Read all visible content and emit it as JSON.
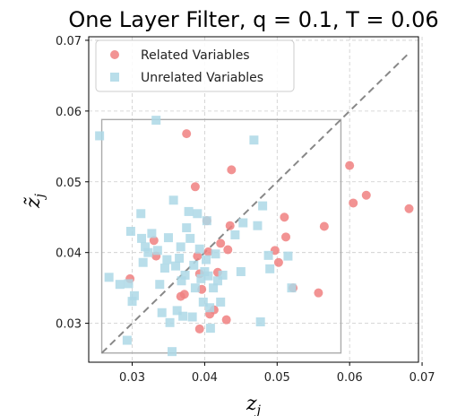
{
  "chart_data": {
    "type": "scatter",
    "title": "One Layer Filter, q = 0.1, T = 0.06",
    "xlabel": "z",
    "xlabel_sub": "j",
    "ylabel": "z̃",
    "ylabel_sub": "j",
    "xlim": [
      0.024,
      0.0695
    ],
    "ylim": [
      0.0245,
      0.0705
    ],
    "xticks": [
      "0.03",
      "0.04",
      "0.05",
      "0.06",
      "0.07"
    ],
    "yticks": [
      "0.03",
      "0.04",
      "0.05",
      "0.06",
      "0.07"
    ],
    "grid": true,
    "legend_position": "top-left",
    "diagonal": [
      [
        0.0258,
        0.0258
      ],
      [
        0.068,
        0.068
      ]
    ],
    "threshold_box": {
      "x0": 0.0258,
      "x1": 0.0588,
      "y0": 0.0258,
      "y1": 0.0588
    },
    "series": [
      {
        "name": "Related Variables",
        "marker": "circle",
        "color": "#f08080",
        "points": [
          [
            0.0297,
            0.0363
          ],
          [
            0.033,
            0.0417
          ],
          [
            0.0333,
            0.0395
          ],
          [
            0.0367,
            0.0338
          ],
          [
            0.0372,
            0.0341
          ],
          [
            0.0375,
            0.0568
          ],
          [
            0.0387,
            0.0493
          ],
          [
            0.039,
            0.0395
          ],
          [
            0.0393,
            0.037
          ],
          [
            0.0396,
            0.0348
          ],
          [
            0.0393,
            0.0292
          ],
          [
            0.0403,
            0.0445
          ],
          [
            0.0405,
            0.0401
          ],
          [
            0.0407,
            0.0313
          ],
          [
            0.0413,
            0.0319
          ],
          [
            0.0418,
            0.0372
          ],
          [
            0.0422,
            0.0413
          ],
          [
            0.043,
            0.0305
          ],
          [
            0.0432,
            0.0404
          ],
          [
            0.0435,
            0.0438
          ],
          [
            0.0437,
            0.0517
          ],
          [
            0.0497,
            0.0403
          ],
          [
            0.0502,
            0.0386
          ],
          [
            0.051,
            0.045
          ],
          [
            0.0512,
            0.0422
          ],
          [
            0.0522,
            0.035
          ],
          [
            0.0557,
            0.0343
          ],
          [
            0.0565,
            0.0437
          ],
          [
            0.06,
            0.0523
          ],
          [
            0.0605,
            0.047
          ],
          [
            0.0623,
            0.0481
          ],
          [
            0.0682,
            0.0462
          ]
        ]
      },
      {
        "name": "Unrelated Variables",
        "marker": "square",
        "color": "#add8e6",
        "points": [
          [
            0.0255,
            0.0565
          ],
          [
            0.0268,
            0.0365
          ],
          [
            0.0283,
            0.0355
          ],
          [
            0.0293,
            0.0276
          ],
          [
            0.0295,
            0.0356
          ],
          [
            0.0298,
            0.043
          ],
          [
            0.03,
            0.0331
          ],
          [
            0.0303,
            0.0339
          ],
          [
            0.0312,
            0.0455
          ],
          [
            0.0313,
            0.042
          ],
          [
            0.0315,
            0.0386
          ],
          [
            0.0318,
            0.0408
          ],
          [
            0.0322,
            0.04
          ],
          [
            0.0327,
            0.0427
          ],
          [
            0.0333,
            0.0587
          ],
          [
            0.0335,
            0.0403
          ],
          [
            0.0338,
            0.0355
          ],
          [
            0.0341,
            0.0315
          ],
          [
            0.0345,
            0.0378
          ],
          [
            0.0348,
            0.039
          ],
          [
            0.035,
            0.0421
          ],
          [
            0.0352,
            0.0301
          ],
          [
            0.0355,
            0.026
          ],
          [
            0.0357,
            0.0474
          ],
          [
            0.036,
            0.0381
          ],
          [
            0.0362,
            0.0318
          ],
          [
            0.0365,
            0.0392
          ],
          [
            0.0367,
            0.0408
          ],
          [
            0.0368,
            0.036
          ],
          [
            0.037,
            0.031
          ],
          [
            0.0373,
            0.0368
          ],
          [
            0.0375,
            0.0435
          ],
          [
            0.0378,
            0.0458
          ],
          [
            0.038,
            0.042
          ],
          [
            0.0383,
            0.0309
          ],
          [
            0.0385,
            0.0382
          ],
          [
            0.0387,
            0.035
          ],
          [
            0.039,
            0.0455
          ],
          [
            0.0393,
            0.0405
          ],
          [
            0.0395,
            0.0363
          ],
          [
            0.0398,
            0.033
          ],
          [
            0.04,
            0.0373
          ],
          [
            0.0402,
            0.039
          ],
          [
            0.0403,
            0.0445
          ],
          [
            0.0405,
            0.0367
          ],
          [
            0.0407,
            0.0322
          ],
          [
            0.0408,
            0.0293
          ],
          [
            0.0412,
            0.035
          ],
          [
            0.0415,
            0.0398
          ],
          [
            0.0418,
            0.036
          ],
          [
            0.0422,
            0.033
          ],
          [
            0.0425,
            0.0368
          ],
          [
            0.0442,
            0.0425
          ],
          [
            0.045,
            0.0373
          ],
          [
            0.0453,
            0.0442
          ],
          [
            0.0468,
            0.0559
          ],
          [
            0.0473,
            0.0438
          ],
          [
            0.0477,
            0.0302
          ],
          [
            0.048,
            0.0466
          ],
          [
            0.0488,
            0.0396
          ],
          [
            0.049,
            0.0377
          ],
          [
            0.052,
            0.035
          ],
          [
            0.0515,
            0.0395
          ]
        ]
      }
    ]
  }
}
